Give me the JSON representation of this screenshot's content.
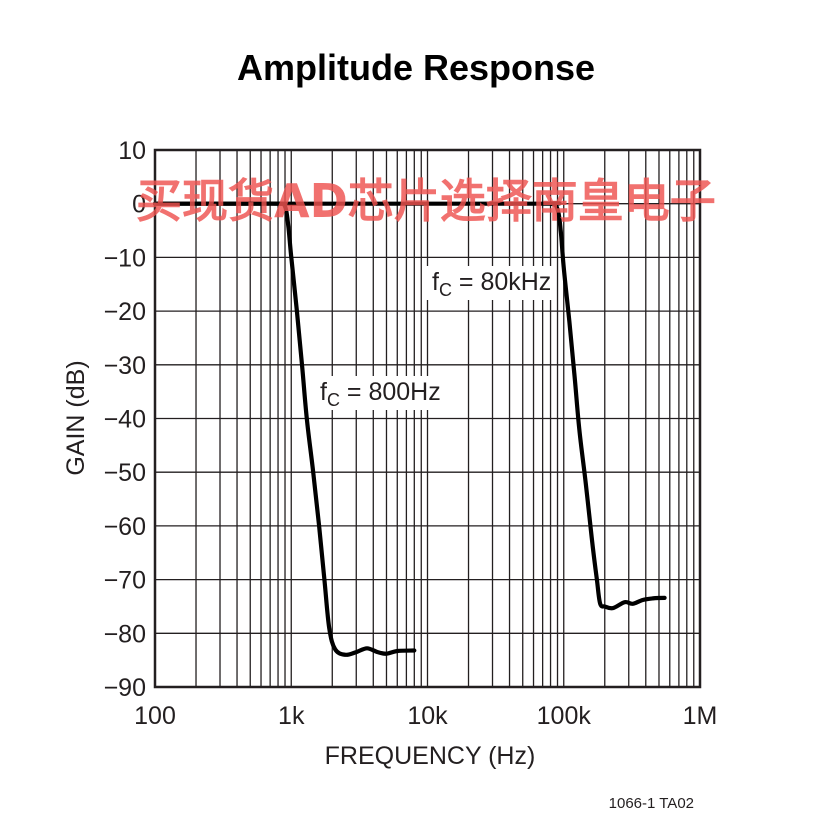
{
  "chart_data": {
    "type": "line",
    "title": "Amplitude Response",
    "xlabel": "FREQUENCY (Hz)",
    "ylabel": "GAIN (dB)",
    "x_scale": "log",
    "xlim": [
      100,
      1000000
    ],
    "ylim": [
      -90,
      10
    ],
    "x_tick_labels": [
      "100",
      "1k",
      "10k",
      "100k",
      "1M"
    ],
    "y_ticks": [
      10,
      0,
      -10,
      -20,
      -30,
      -40,
      -50,
      -60,
      -70,
      -80,
      -90
    ],
    "y_tick_labels": [
      "10",
      "0",
      "−10",
      "−20",
      "−30",
      "−40",
      "−50",
      "−60",
      "−70",
      "−80",
      "−90"
    ],
    "grid": true,
    "series": [
      {
        "color": "#000000",
        "points": [
          [
            100,
            0
          ],
          [
            500,
            0
          ],
          [
            800,
            0
          ],
          [
            900,
            -0.5
          ],
          [
            950,
            -4
          ],
          [
            1000,
            -10
          ],
          [
            1100,
            -20
          ],
          [
            1200,
            -30
          ],
          [
            1300,
            -40
          ],
          [
            1450,
            -50
          ],
          [
            1600,
            -60
          ],
          [
            1750,
            -70
          ],
          [
            1900,
            -79
          ],
          [
            2100,
            -83
          ],
          [
            2500,
            -84
          ],
          [
            3000,
            -83.5
          ],
          [
            3600,
            -82.8
          ],
          [
            4300,
            -83.5
          ],
          [
            5000,
            -83.8
          ],
          [
            6000,
            -83.3
          ],
          [
            8000,
            -83.2
          ]
        ]
      },
      {
        "color": "#000000",
        "points": [
          [
            100,
            0
          ],
          [
            50000,
            0
          ],
          [
            80000,
            0
          ],
          [
            90000,
            -1
          ],
          [
            95000,
            -5
          ],
          [
            100000,
            -12
          ],
          [
            110000,
            -22
          ],
          [
            120000,
            -32
          ],
          [
            130000,
            -42
          ],
          [
            145000,
            -52
          ],
          [
            160000,
            -62
          ],
          [
            175000,
            -70
          ],
          [
            185000,
            -74.5
          ],
          [
            200000,
            -75
          ],
          [
            230000,
            -75.3
          ],
          [
            280000,
            -74.2
          ],
          [
            320000,
            -74.5
          ],
          [
            380000,
            -73.8
          ],
          [
            450000,
            -73.5
          ],
          [
            550000,
            -73.4
          ]
        ]
      }
    ],
    "annotations": [
      {
        "main": "f",
        "sub": "C",
        "rest": " = 80kHz"
      },
      {
        "main": "f",
        "sub": "C",
        "rest": " = 800Hz"
      }
    ]
  },
  "watermark": "买现货AD芯片选择南皇电子",
  "figure_code": "1066-1 TA02"
}
